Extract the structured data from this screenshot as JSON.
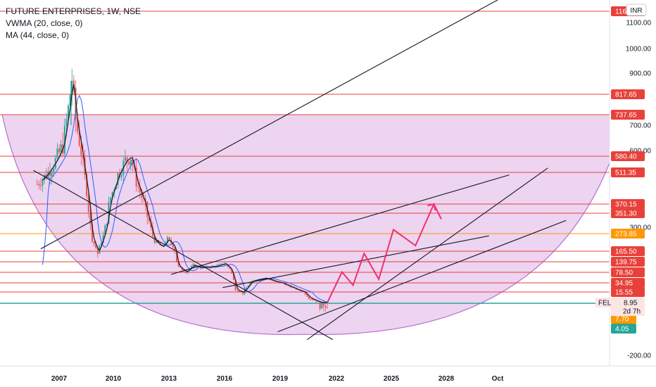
{
  "legend": {
    "title": "FUTURE ENTERPRISES, 1W, NSE",
    "indicator_1": "VWMA (20, close, 0)",
    "indicator_2": "MA (44, close, 0)"
  },
  "currency_badge": "INR",
  "symbol_badge": {
    "symbol": "FEL",
    "price": "8.95",
    "countdown": "2d 7h"
  },
  "colors": {
    "hline": "#e8413a",
    "hline_orange": "#ff9800",
    "cup_fill": "#e7c6ec",
    "cup_edge": "#b96fcf",
    "trend": "#131722",
    "projection": "#f0306c",
    "vwma": "#2962ff",
    "ma": "#131722",
    "candle_up": "#26a69a",
    "candle_down": "#ef5350",
    "baseline": "#26a69a",
    "tag_green": "#26a69a",
    "tag_orange": "#ff9800"
  },
  "chart_data": {
    "type": "candlestick",
    "title": "FUTURE ENTERPRISES, 1W, NSE",
    "x_ticks": [
      "2007",
      "2010",
      "2013",
      "2016",
      "2019",
      "2022",
      "2025",
      "2028",
      "Oct"
    ],
    "y_ticks": [
      "1100.00",
      "1000.00",
      "900.00",
      "700.00",
      "600.00",
      "300.00",
      "-200.00"
    ],
    "price_levels": [
      {
        "value": "1163.95",
        "label": "1163.95",
        "style": "red"
      },
      {
        "value": 817.65,
        "label": "817.65",
        "style": "red"
      },
      {
        "value": 737.65,
        "label": "737.65",
        "style": "red"
      },
      {
        "value": 580.4,
        "label": "580.40",
        "style": "red"
      },
      {
        "value": 511.35,
        "label": "511.35",
        "style": "red"
      },
      {
        "value": 370.15,
        "label": "370.15",
        "style": "red"
      },
      {
        "value": 351.3,
        "label": "351.30",
        "style": "red"
      },
      {
        "value": 273.85,
        "label": "273.85",
        "style": "orange"
      },
      {
        "value": 165.5,
        "label": "165.50",
        "style": "red"
      },
      {
        "value": 139.75,
        "label": "139.75",
        "style": "red"
      },
      {
        "value": 78.5,
        "label": "78.50",
        "style": "red"
      },
      {
        "value": 34.95,
        "label": "34.95",
        "style": "red"
      },
      {
        "value": 15.55,
        "label": "15.55",
        "style": "red"
      }
    ],
    "tags": [
      {
        "value": 7.7,
        "label": "7.70",
        "style": "orange"
      },
      {
        "value": 4.05,
        "label": "4.05",
        "style": "green"
      }
    ],
    "price_series": [
      [
        2005.8,
        460
      ],
      [
        2006.3,
        500
      ],
      [
        2006.8,
        560
      ],
      [
        2007.2,
        620
      ],
      [
        2007.5,
        760
      ],
      [
        2007.7,
        880
      ],
      [
        2007.9,
        720
      ],
      [
        2008.2,
        600
      ],
      [
        2008.5,
        430
      ],
      [
        2008.8,
        240
      ],
      [
        2009.1,
        160
      ],
      [
        2009.4,
        260
      ],
      [
        2009.8,
        400
      ],
      [
        2010.2,
        500
      ],
      [
        2010.6,
        560
      ],
      [
        2010.9,
        580
      ],
      [
        2011.2,
        470
      ],
      [
        2011.6,
        380
      ],
      [
        2011.9,
        320
      ],
      [
        2012.2,
        230
      ],
      [
        2012.6,
        190
      ],
      [
        2012.9,
        240
      ],
      [
        2013.2,
        200
      ],
      [
        2013.5,
        110
      ],
      [
        2013.9,
        80
      ],
      [
        2014.3,
        120
      ],
      [
        2014.7,
        105
      ],
      [
        2015.2,
        110
      ],
      [
        2015.6,
        115
      ],
      [
        2016.0,
        130
      ],
      [
        2016.3,
        100
      ],
      [
        2016.6,
        20
      ],
      [
        2017.0,
        15
      ],
      [
        2017.6,
        45
      ],
      [
        2018.2,
        55
      ],
      [
        2018.8,
        40
      ],
      [
        2019.4,
        30
      ],
      [
        2020.0,
        20
      ],
      [
        2020.6,
        12
      ],
      [
        2021.2,
        9
      ],
      [
        2021.6,
        8.95
      ]
    ],
    "projection_path": [
      [
        2021.6,
        9
      ],
      [
        2022.4,
        80
      ],
      [
        2023.0,
        30
      ],
      [
        2023.6,
        160
      ],
      [
        2024.4,
        50
      ],
      [
        2025.2,
        290
      ],
      [
        2026.4,
        200
      ],
      [
        2027.4,
        370
      ],
      [
        2027.8,
        330
      ]
    ],
    "trend_lines": [
      [
        [
          2006.0,
          180
        ],
        [
          2032.5,
          1280
        ]
      ],
      [
        [
          2005.6,
          520
        ],
        [
          2021.9,
          -80
        ]
      ],
      [
        [
          2013.1,
          70
        ],
        [
          2031.5,
          500
        ]
      ],
      [
        [
          2015.9,
          25
        ],
        [
          2030.4,
          260
        ]
      ],
      [
        [
          2020.5,
          -80
        ],
        [
          2033.6,
          530
        ]
      ],
      [
        [
          2018.9,
          -20
        ],
        [
          2034.6,
          325
        ]
      ]
    ],
    "cup": {
      "left_rim": [
        2003.9,
        737.65
      ],
      "bottom": [
        2020.3,
        -40
      ],
      "right_rim": [
        2037.8,
        737.65
      ]
    }
  }
}
